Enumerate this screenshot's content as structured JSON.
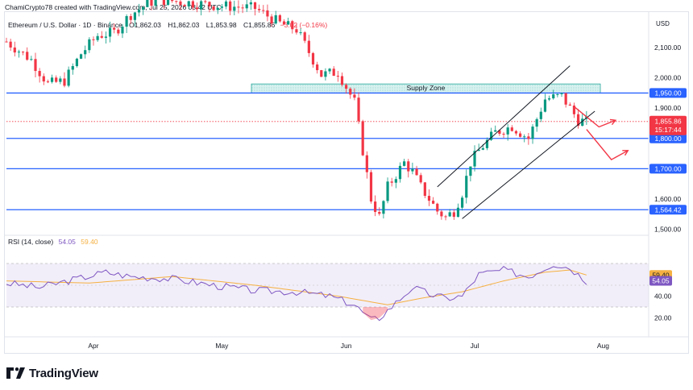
{
  "header": {
    "credit": "ChamiCrypto78 created with TradingView.com, Jul 25, 2026 08:42 UTC",
    "symbol": "Ethereum / U.S. Dollar · 1D · Binance",
    "open": "O1,862.03",
    "high": "H1,862.03",
    "low": "L1,853.98",
    "close": "C1,855.86",
    "change": "−3.02 (−0.16%)"
  },
  "currency": "USD",
  "price_axis_labels": [
    "2,100.00",
    "2,000.00",
    "1,900.00",
    "1,600.00",
    "1,500.00"
  ],
  "levels": [
    {
      "label": "1,950.00",
      "value": 1950,
      "color": "#2962ff"
    },
    {
      "label": "1,800.00",
      "value": 1800,
      "color": "#2962ff"
    },
    {
      "label": "1,700.00",
      "value": 1700,
      "color": "#2962ff"
    },
    {
      "label": "1,564.42",
      "value": 1564.42,
      "color": "#2962ff"
    }
  ],
  "last_price": {
    "label": "1,855.86",
    "value": 1855.86,
    "countdown": "15:17:44",
    "color": "#f23645"
  },
  "supply_zone": {
    "label": "Supply Zone",
    "low": 1950,
    "high": 1980
  },
  "x_axis_labels": [
    "Apr",
    "May",
    "Jun",
    "Jul",
    "Aug"
  ],
  "rsi": {
    "label": "RSI (14, close)",
    "rsi_value": "54.05",
    "ma_value": "59.40",
    "rsi_color": "#7e57c2",
    "ma_color": "#f5b041",
    "axis_labels": [
      "40.00",
      "20.00"
    ],
    "band_upper": 70,
    "band_lower": 30
  },
  "brand": "TradingView",
  "chart_data": {
    "type": "candlestick",
    "title": "Ethereum / U.S. Dollar · 1D · Binance",
    "ylim": [
      1480,
      2220
    ],
    "x_range_days": [
      0,
      155
    ],
    "month_ticks": [
      {
        "label": "Apr",
        "day": 21
      },
      {
        "label": "May",
        "day": 52
      },
      {
        "label": "Jun",
        "day": 82
      },
      {
        "label": "Jul",
        "day": 113
      },
      {
        "label": "Aug",
        "day": 144
      }
    ],
    "channel": {
      "lower": [
        [
          110,
          1535
        ],
        [
          142,
          1890
        ]
      ],
      "upper": [
        [
          104,
          1640
        ],
        [
          136,
          2040
        ]
      ]
    },
    "projection": [
      [
        137,
        1905
      ],
      [
        143,
        1838
      ],
      [
        147,
        1860
      ]
    ],
    "projection2": [
      [
        140,
        1830
      ],
      [
        146,
        1730
      ],
      [
        150,
        1760
      ]
    ]
  }
}
